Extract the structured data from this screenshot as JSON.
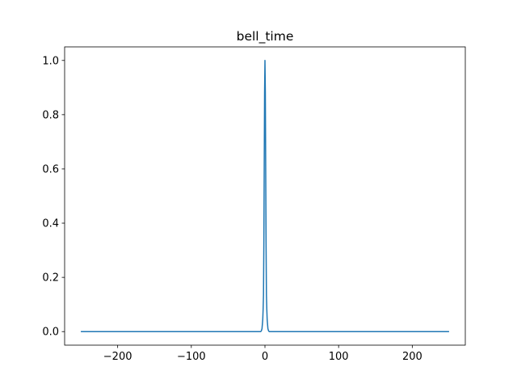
{
  "chart_data": {
    "type": "line",
    "title": "bell_time",
    "xlabel": "",
    "ylabel": "",
    "xlim": [
      -272,
      272
    ],
    "ylim": [
      -0.05,
      1.05
    ],
    "x_ticks": [
      -200,
      -100,
      0,
      100,
      200
    ],
    "x_tick_labels": [
      "−200",
      "−100",
      "0",
      "100",
      "200"
    ],
    "y_ticks": [
      0.0,
      0.2,
      0.4,
      0.6,
      0.8,
      1.0
    ],
    "y_tick_labels": [
      "0.0",
      "0.2",
      "0.4",
      "0.6",
      "0.8",
      "1.0"
    ],
    "grid": false,
    "series": [
      {
        "color": "#1f77b4",
        "x": [
          -250,
          -200,
          -150,
          -100,
          -50,
          -20,
          -10,
          -8,
          -6,
          -5,
          -4,
          -3,
          -2.5,
          -2,
          -1.5,
          -1,
          -0.5,
          0,
          0.5,
          1,
          1.5,
          2,
          2.5,
          3,
          4,
          5,
          6,
          8,
          10,
          20,
          50,
          100,
          150,
          200,
          250
        ],
        "values": [
          0,
          0,
          0,
          0,
          0,
          0,
          0,
          0,
          0,
          0.002,
          0.011,
          0.044,
          0.082,
          0.135,
          0.325,
          0.607,
          0.882,
          1.0,
          0.882,
          0.607,
          0.325,
          0.135,
          0.082,
          0.044,
          0.011,
          0.002,
          0,
          0,
          0,
          0,
          0,
          0,
          0,
          0,
          0
        ]
      }
    ]
  }
}
